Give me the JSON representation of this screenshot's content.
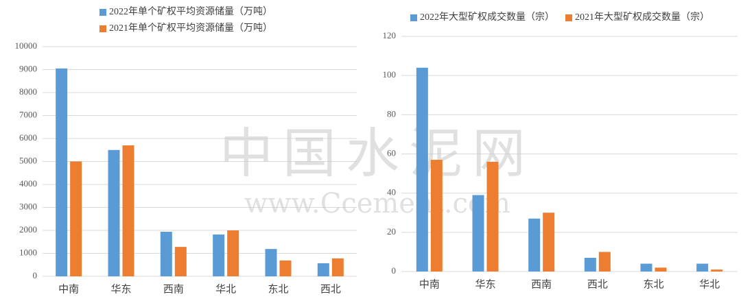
{
  "chart_data": [
    {
      "type": "bar",
      "categories": [
        "中南",
        "华东",
        "西南",
        "华北",
        "东北",
        "西北"
      ],
      "series": [
        {
          "name": "2022年单个矿权平均资源储量（万吨）",
          "color": "#5b9bd5",
          "values": [
            9050,
            5500,
            1940,
            1820,
            1190,
            570
          ]
        },
        {
          "name": "2021年单个矿权平均资源储量（万吨）",
          "color": "#ed7d31",
          "values": [
            5000,
            5700,
            1280,
            2000,
            690,
            780
          ]
        }
      ],
      "ylim": [
        0,
        10000
      ],
      "yticks": [
        0,
        1000,
        2000,
        3000,
        4000,
        5000,
        6000,
        7000,
        8000,
        9000,
        10000
      ],
      "grid": true,
      "legend": "top"
    },
    {
      "type": "bar",
      "categories": [
        "中南",
        "华东",
        "西南",
        "西北",
        "东北",
        "华北"
      ],
      "series": [
        {
          "name": "2022年大型矿权成交数量（宗）",
          "color": "#5b9bd5",
          "values": [
            104,
            39,
            27,
            7,
            4,
            4
          ]
        },
        {
          "name": "2021年大型矿权成交数量（宗）",
          "color": "#ed7d31",
          "values": [
            57,
            56,
            30,
            10,
            2,
            1
          ]
        }
      ],
      "ylim": [
        0,
        120
      ],
      "yticks": [
        0,
        20,
        40,
        60,
        80,
        100,
        120
      ],
      "grid": true,
      "legend": "top"
    }
  ],
  "watermark": {
    "title": "中国水泥网",
    "url": "www.Ccement.com"
  }
}
